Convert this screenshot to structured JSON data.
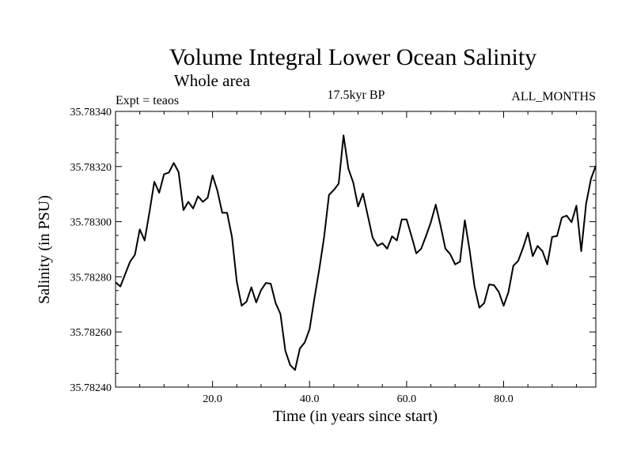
{
  "chart_data": {
    "type": "line",
    "title": "Volume Integral Lower Ocean Salinity",
    "subtitle": "Whole area",
    "left_label": "Expt = teaos",
    "center_label": "17.5kyr BP",
    "right_label": "ALL_MONTHS",
    "xlabel": "Time (in years since start)",
    "ylabel": "Salinity (in PSU)",
    "xlim": [
      0,
      99
    ],
    "ylim": [
      35.7824,
      35.7834
    ],
    "x_ticks": [
      20,
      40,
      60,
      80
    ],
    "x_tick_labels": [
      "20.0",
      "40.0",
      "60.0",
      "80.0"
    ],
    "y_ticks": [
      35.7824,
      35.7826,
      35.7828,
      35.783,
      35.7832,
      35.7834
    ],
    "y_tick_labels": [
      "35.78240",
      "35.78260",
      "35.78280",
      "35.78300",
      "35.78320",
      "35.78340"
    ],
    "grid": false,
    "line_color": "#000000",
    "x": [
      0,
      1,
      2,
      3,
      4,
      5,
      6,
      7,
      8,
      9,
      10,
      11,
      12,
      13,
      14,
      15,
      16,
      17,
      18,
      19,
      20,
      21,
      22,
      23,
      24,
      25,
      26,
      27,
      28,
      29,
      30,
      31,
      32,
      33,
      34,
      35,
      36,
      37,
      38,
      39,
      40,
      41,
      42,
      43,
      44,
      45,
      46,
      47,
      48,
      49,
      50,
      51,
      52,
      53,
      54,
      55,
      56,
      57,
      58,
      59,
      60,
      61,
      62,
      63,
      64,
      65,
      66,
      67,
      68,
      69,
      70,
      71,
      72,
      73,
      74,
      75,
      76,
      77,
      78,
      79,
      80,
      81,
      82,
      83,
      84,
      85,
      86,
      87,
      88,
      89,
      90,
      91,
      92,
      93,
      94,
      95,
      96,
      97,
      98,
      99
    ],
    "values": [
      35.78278,
      35.782765,
      35.78281,
      35.782855,
      35.78288,
      35.782972,
      35.782932,
      35.783035,
      35.783145,
      35.783105,
      35.783172,
      35.783178,
      35.783213,
      35.78318,
      35.783042,
      35.783072,
      35.783048,
      35.783092,
      35.783072,
      35.783087,
      35.783168,
      35.783112,
      35.783032,
      35.783032,
      35.782945,
      35.782782,
      35.782695,
      35.78271,
      35.782762,
      35.782707,
      35.782752,
      35.782778,
      35.782775,
      35.782705,
      35.782665,
      35.782532,
      35.78248,
      35.782462,
      35.78254,
      35.782562,
      35.78261,
      35.782722,
      35.782828,
      35.782945,
      35.783097,
      35.783115,
      35.783138,
      35.783313,
      35.783192,
      35.783142,
      35.783055,
      35.783102,
      35.783022,
      35.782942,
      35.782912,
      35.782922,
      35.782902,
      35.782947,
      35.782932,
      35.783008,
      35.783008,
      35.782948,
      35.782885,
      35.782902,
      35.782948,
      35.782998,
      35.783062,
      35.782985,
      35.782902,
      35.782882,
      35.782845,
      35.782855,
      35.783005,
      35.782895,
      35.782765,
      35.782688,
      35.782705,
      35.782772,
      35.78277,
      35.782745,
      35.782695,
      35.782745,
      35.78284,
      35.782858,
      35.782905,
      35.78296,
      35.782875,
      35.782912,
      35.782893,
      35.782845,
      35.782945,
      35.782948,
      35.783015,
      35.783022,
      35.782998,
      35.783058,
      35.782893,
      35.783065,
      35.783155,
      35.783203
    ]
  }
}
